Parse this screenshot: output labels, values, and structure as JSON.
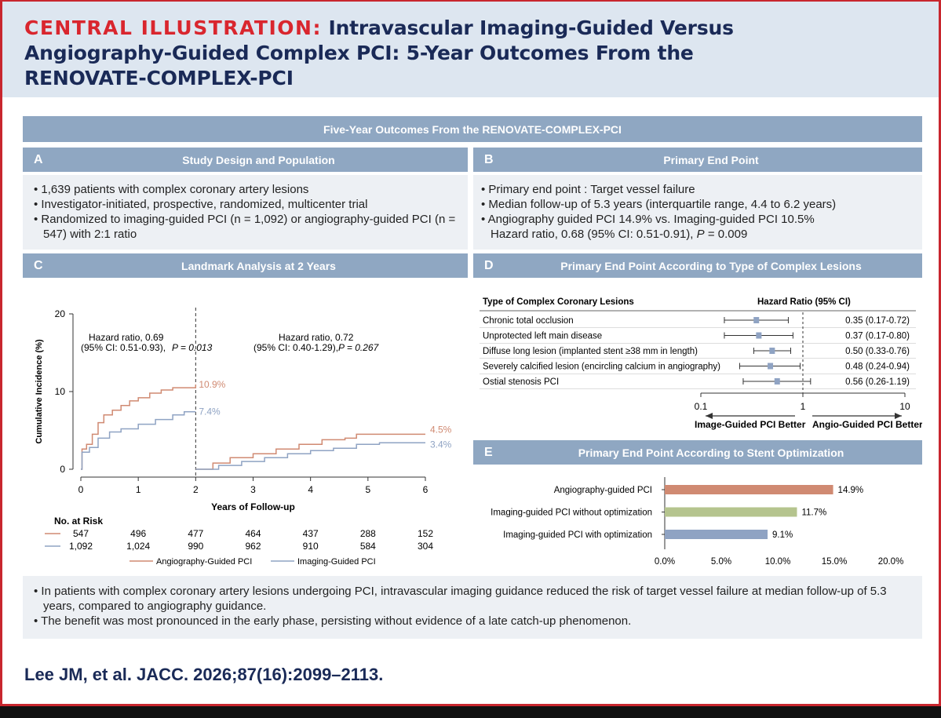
{
  "header": {
    "lead": "CENTRAL ILLUSTRATION:",
    "line1": "Intravascular Imaging-Guided Versus",
    "line2": "Angiography-Guided Complex PCI: 5-Year Outcomes From the",
    "line3": "RENOVATE-COMPLEX-PCI"
  },
  "top_bar": "Five-Year Outcomes From the RENOVATE-COMPLEX-PCI",
  "panel_a": {
    "letter": "A",
    "title": "Study Design and Population",
    "bullets": [
      "1,639 patients with complex coronary artery lesions",
      "Investigator-initiated, prospective, randomized, multicenter trial",
      "Randomized to imaging-guided PCI (n = 1,092) or angiography-guided PCI (n = 547) with 2:1 ratio"
    ]
  },
  "panel_b": {
    "letter": "B",
    "title": "Primary End Point",
    "bullets": [
      "Primary end point : Target vessel failure",
      "Median follow-up of 5.3 years (interquartile range, 4.4 to 6.2 years)",
      "Angiography guided PCI 14.9% vs. Imaging-guided PCI 10.5%"
    ],
    "hr_line_prefix": "Hazard ratio, 0.68 (95% CI: 0.51-0.91),",
    "p_label": "P",
    "p_value": "= 0.009"
  },
  "panel_c": {
    "letter": "C",
    "title": "Landmark Analysis at 2 Years",
    "left_hr": "Hazard ratio, 0.69",
    "left_ci": "(95% CI: 0.51-0.93),",
    "left_p": "P = 0.013",
    "right_hr": "Hazard ratio, 0.72",
    "right_ci": "(95% CI: 0.40-1.29),",
    "right_p": "P = 0.267",
    "risk_title": "No. at Risk"
  },
  "panel_d": {
    "letter": "D",
    "title": "Primary End Point According to Type of Complex Lesions",
    "col_lesion": "Type of Complex Coronary Lesions",
    "col_hr": "Hazard Ratio (95% CI)",
    "left_arrow": "Image-Guided PCI Better",
    "right_arrow": "Angio-Guided PCI Better"
  },
  "panel_e": {
    "letter": "E",
    "title": "Primary End Point According to Stent Optimization"
  },
  "conclusions": [
    "In patients with complex coronary artery lesions undergoing PCI, intravascular imaging guidance reduced the risk of target vessel failure at median follow-up of 5.3 years, compared to angiography guidance.",
    "The benefit was most pronounced in the early phase, persisting without evidence of a late catch-up phenomenon."
  ],
  "citation": "Lee JM, et al. JACC. 2026;87(16):2099–2113.",
  "colors": {
    "angio": "#d08a72",
    "imaging": "#8fa3c3",
    "optim_no": "#b5c48e",
    "navy": "#1a2a57",
    "red": "#d9262e"
  },
  "chart_data": [
    {
      "type": "line",
      "name": "km-landmark",
      "xlabel": "Years of Follow-up",
      "ylabel": "Cumulative Incidence (%)",
      "xlim": [
        0,
        6
      ],
      "ylim": [
        0,
        20
      ],
      "x_ticks": [
        "0",
        "1",
        "2",
        "3",
        "4",
        "5",
        "6"
      ],
      "y_ticks": [
        "0",
        "10",
        "20"
      ],
      "landmark_x": 2,
      "series": [
        {
          "name": "Angiography-Guided PCI",
          "color": "#d08a72",
          "segment1": [
            [
              0,
              0
            ],
            [
              0.02,
              2.6
            ],
            [
              0.1,
              3.2
            ],
            [
              0.2,
              4.5
            ],
            [
              0.3,
              6.0
            ],
            [
              0.4,
              7.0
            ],
            [
              0.55,
              7.6
            ],
            [
              0.7,
              8.2
            ],
            [
              0.85,
              8.8
            ],
            [
              1.0,
              9.2
            ],
            [
              1.2,
              9.8
            ],
            [
              1.4,
              10.2
            ],
            [
              1.6,
              10.5
            ],
            [
              2.0,
              10.9
            ]
          ],
          "segment2": [
            [
              2.0,
              0
            ],
            [
              2.3,
              0.8
            ],
            [
              2.6,
              1.5
            ],
            [
              3.0,
              2.0
            ],
            [
              3.4,
              2.6
            ],
            [
              3.8,
              3.2
            ],
            [
              4.2,
              3.8
            ],
            [
              4.6,
              4.0
            ],
            [
              4.8,
              4.5
            ],
            [
              6.0,
              4.5
            ]
          ],
          "end_label1": "10.9%",
          "end_label2": "4.5%",
          "at_risk": [
            "547",
            "496",
            "477",
            "464",
            "437",
            "288",
            "152"
          ]
        },
        {
          "name": "Imaging-Guided PCI",
          "color": "#8fa3c3",
          "segment1": [
            [
              0,
              0
            ],
            [
              0.02,
              2.2
            ],
            [
              0.15,
              2.8
            ],
            [
              0.3,
              4.0
            ],
            [
              0.5,
              4.8
            ],
            [
              0.7,
              5.2
            ],
            [
              1.0,
              5.8
            ],
            [
              1.3,
              6.4
            ],
            [
              1.6,
              7.0
            ],
            [
              1.8,
              7.4
            ],
            [
              2.0,
              7.4
            ]
          ],
          "segment2": [
            [
              2.0,
              0
            ],
            [
              2.4,
              0.5
            ],
            [
              2.8,
              1.0
            ],
            [
              3.2,
              1.5
            ],
            [
              3.6,
              2.0
            ],
            [
              4.0,
              2.4
            ],
            [
              4.4,
              2.7
            ],
            [
              4.8,
              3.2
            ],
            [
              5.2,
              3.4
            ],
            [
              6.0,
              3.4
            ]
          ],
          "end_label1": "7.4%",
          "end_label2": "3.4%",
          "at_risk": [
            "1,092",
            "1,024",
            "990",
            "962",
            "910",
            "584",
            "304"
          ]
        }
      ]
    },
    {
      "type": "forest",
      "name": "forest-lesions",
      "scale": "log",
      "xlim": [
        0.1,
        10
      ],
      "x_ticks": [
        "0.1",
        "1",
        "10"
      ],
      "reference": 1,
      "rows": [
        {
          "label": "Chronic total occlusion",
          "hr": 0.35,
          "lo": 0.17,
          "hi": 0.72,
          "text": "0.35 (0.17-0.72)"
        },
        {
          "label": "Unprotected left main disease",
          "hr": 0.37,
          "lo": 0.17,
          "hi": 0.8,
          "text": "0.37 (0.17-0.80)"
        },
        {
          "label": "Diffuse long lesion (implanted stent ≥38 mm in length)",
          "hr": 0.5,
          "lo": 0.33,
          "hi": 0.76,
          "text": "0.50 (0.33-0.76)"
        },
        {
          "label": "Severely calcified lesion (encircling calcium in angiography)",
          "hr": 0.48,
          "lo": 0.24,
          "hi": 0.94,
          "text": "0.48 (0.24-0.94)"
        },
        {
          "label": "Ostial stenosis PCI",
          "hr": 0.56,
          "lo": 0.26,
          "hi": 1.19,
          "text": "0.56 (0.26-1.19)"
        }
      ]
    },
    {
      "type": "bar",
      "name": "stent-optimization",
      "orientation": "horizontal",
      "xlim": [
        0,
        20
      ],
      "x_ticks": [
        "0.0%",
        "5.0%",
        "10.0%",
        "15.0%",
        "20.0%"
      ],
      "categories": [
        "Angiography-guided PCI",
        "Imaging-guided PCI without optimization",
        "Imaging-guided PCI with optimization"
      ],
      "values": [
        14.9,
        11.7,
        9.1
      ],
      "value_labels": [
        "14.9%",
        "11.7%",
        "9.1%"
      ],
      "colors": [
        "#d08a72",
        "#b5c48e",
        "#8fa3c3"
      ]
    }
  ]
}
